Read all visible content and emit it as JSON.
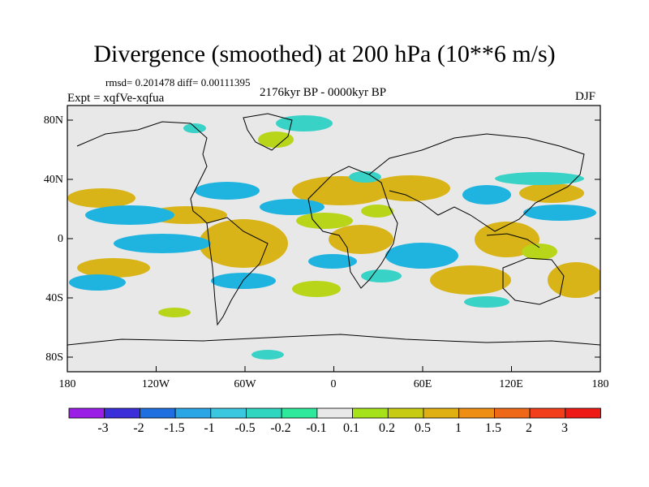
{
  "title": "Divergence (smoothed) at 200 hPa (10**6 m/s)",
  "stats": "rmsd= 0.201478 diff= 0.00111395",
  "experiment": "Expt = xqfVe-xqfua",
  "period": "2176kyr BP - 0000kyr BP",
  "season": "DJF",
  "lat_labels": [
    "80N",
    "40N",
    "0",
    "40S",
    "80S"
  ],
  "lon_labels": [
    "180",
    "120W",
    "60W",
    "0",
    "60E",
    "120E",
    "180"
  ],
  "colorbar": {
    "labels": [
      "-3",
      "-2",
      "-1.5",
      "-1",
      "-0.5",
      "-0.2",
      "-0.1",
      "0.1",
      "0.2",
      "0.5",
      "1",
      "1.5",
      "2",
      "3"
    ],
    "colors": [
      "#9a1ee6",
      "#3a2fd8",
      "#1f6fe0",
      "#2aa6e6",
      "#39c8df",
      "#31d6c0",
      "#2ee89c",
      "#e8e8e8",
      "#a6e21a",
      "#c7cc12",
      "#e0b012",
      "#ee8f14",
      "#ef6818",
      "#f33e1c",
      "#ee1a16"
    ]
  },
  "colors": {
    "neg_strong": "#1fb4df",
    "neg_weak": "#39d2c6",
    "pos_weak": "#b8d51a",
    "pos_mid": "#d8b418",
    "pos_strong": "#e7a21c",
    "background": "#e8e8e8"
  }
}
